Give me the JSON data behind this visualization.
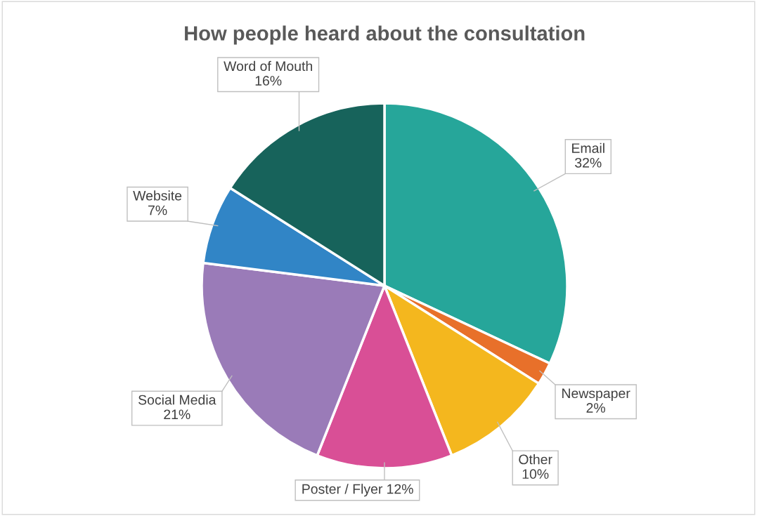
{
  "chart_data": {
    "type": "pie",
    "title": "How people heard about the consultation",
    "categories": [
      "Email",
      "Newspaper",
      "Other",
      "Poster / Flyer",
      "Social Media",
      "Website",
      "Word of Mouth"
    ],
    "values": [
      32,
      2,
      10,
      12,
      21,
      7,
      16
    ],
    "colors": [
      "#26a69a",
      "#e8702a",
      "#f4b71e",
      "#d94f96",
      "#9a7bb8",
      "#3185c6",
      "#17635b"
    ],
    "value_labels": [
      "32%",
      "2%",
      "10%",
      "12%",
      "21%",
      "7%",
      "16%"
    ],
    "legend": false
  }
}
